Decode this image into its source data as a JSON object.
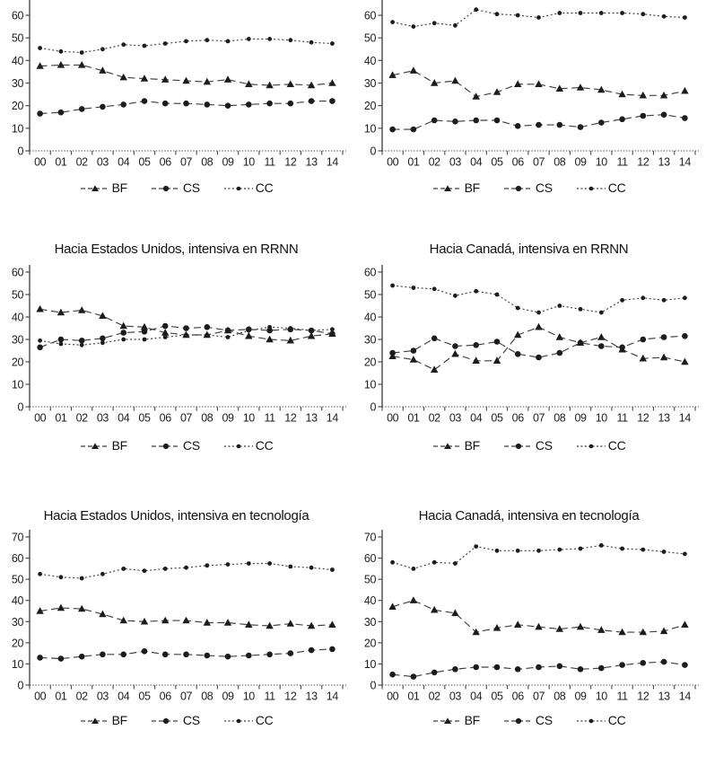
{
  "colors": {
    "line": "#3f3f3f",
    "marker": "#1c1c1c",
    "axis": "#4a4a4a",
    "text": "#1f1f1f",
    "background": "#ffffff"
  },
  "legend": {
    "items": [
      "BF",
      "CS",
      "CC"
    ]
  },
  "chart_data": [
    {
      "type": "line",
      "title": "",
      "position": "top-left",
      "categories": [
        "00",
        "01",
        "02",
        "03",
        "04",
        "05",
        "06",
        "07",
        "08",
        "09",
        "10",
        "11",
        "12",
        "13",
        "14"
      ],
      "ylim": [
        0,
        60
      ],
      "yticks": [
        0,
        10,
        20,
        30,
        40,
        50,
        60
      ],
      "grid": false,
      "legend_position": "bottom",
      "series": [
        {
          "name": "BF",
          "marker": "triangle",
          "linestyle": "dashed",
          "values": [
            37.5,
            38,
            38,
            35.5,
            32.5,
            32,
            31.5,
            31,
            30.5,
            31.5,
            29.5,
            29,
            29.5,
            29,
            30
          ]
        },
        {
          "name": "CS",
          "marker": "circle",
          "linestyle": "dashed",
          "values": [
            16.5,
            17,
            18.5,
            19.5,
            20.5,
            22,
            21,
            21,
            20.5,
            20,
            20.5,
            21,
            21,
            22,
            22
          ]
        },
        {
          "name": "CC",
          "marker": "dot",
          "linestyle": "dotted",
          "values": [
            45.5,
            44,
            43.5,
            45,
            47,
            46.5,
            47.5,
            48.5,
            49,
            48.5,
            49.5,
            49.5,
            49,
            48,
            47.5
          ]
        }
      ]
    },
    {
      "type": "line",
      "title": "",
      "position": "top-right",
      "categories": [
        "00",
        "01",
        "02",
        "03",
        "04",
        "05",
        "06",
        "07",
        "08",
        "09",
        "10",
        "11",
        "12",
        "13",
        "14"
      ],
      "ylim": [
        0,
        60
      ],
      "yticks": [
        0,
        10,
        20,
        30,
        40,
        50,
        60
      ],
      "grid": false,
      "legend_position": "bottom",
      "series": [
        {
          "name": "BF",
          "marker": "triangle",
          "linestyle": "dashed",
          "values": [
            33.5,
            35.5,
            30,
            31,
            24,
            26,
            29.5,
            29.5,
            27.5,
            28,
            27,
            25,
            24.5,
            24.5,
            26.5
          ]
        },
        {
          "name": "CS",
          "marker": "circle",
          "linestyle": "dashed",
          "values": [
            9.5,
            9.5,
            13.5,
            13,
            13.5,
            13.5,
            11,
            11.5,
            11.5,
            10.5,
            12.5,
            14,
            15.5,
            16,
            14.5
          ]
        },
        {
          "name": "CC",
          "marker": "dot",
          "linestyle": "dotted",
          "values": [
            57,
            55,
            56.5,
            55.5,
            62.5,
            60.5,
            60,
            59,
            61,
            61,
            61,
            61,
            60.5,
            59.5,
            59
          ]
        }
      ]
    },
    {
      "type": "line",
      "title": "Hacia Estados Unidos, intensiva en RRNN",
      "position": "middle-left",
      "categories": [
        "00",
        "01",
        "02",
        "03",
        "04",
        "05",
        "06",
        "07",
        "08",
        "09",
        "10",
        "11",
        "12",
        "13",
        "14"
      ],
      "ylim": [
        0,
        60
      ],
      "yticks": [
        0,
        10,
        20,
        30,
        40,
        50,
        60
      ],
      "grid": false,
      "legend_position": "bottom",
      "series": [
        {
          "name": "BF",
          "marker": "triangle",
          "linestyle": "dashed",
          "values": [
            43.5,
            42,
            43,
            40.5,
            36,
            35.5,
            33,
            32,
            32,
            34,
            31.5,
            30,
            29.5,
            31.5,
            32.5
          ]
        },
        {
          "name": "CS",
          "marker": "circle",
          "linestyle": "dashed",
          "values": [
            26.5,
            30,
            29.5,
            30.5,
            33,
            33.5,
            36,
            35,
            35.5,
            34,
            34.5,
            34,
            34.5,
            34,
            32.5
          ]
        },
        {
          "name": "CC",
          "marker": "dot",
          "linestyle": "dotted",
          "values": [
            29.5,
            28,
            27.5,
            28.5,
            30,
            30,
            31,
            32,
            32,
            31,
            34,
            35.5,
            35,
            34,
            34.5
          ]
        }
      ]
    },
    {
      "type": "line",
      "title": "Hacia Canadá, intensiva en RRNN",
      "position": "middle-right",
      "categories": [
        "00",
        "01",
        "02",
        "03",
        "04",
        "05",
        "06",
        "07",
        "08",
        "09",
        "10",
        "11",
        "12",
        "13",
        "14"
      ],
      "ylim": [
        0,
        60
      ],
      "yticks": [
        0,
        10,
        20,
        30,
        40,
        50,
        60
      ],
      "grid": false,
      "legend_position": "bottom",
      "series": [
        {
          "name": "BF",
          "marker": "triangle",
          "linestyle": "dashed",
          "values": [
            22.5,
            21,
            16.5,
            23.5,
            20.5,
            20.5,
            32,
            35.5,
            31,
            28.5,
            31,
            25.5,
            21.5,
            22,
            20
          ]
        },
        {
          "name": "CS",
          "marker": "circle",
          "linestyle": "dashed",
          "values": [
            24,
            25,
            30.5,
            27,
            27.5,
            29,
            23.5,
            22,
            24,
            28.5,
            27,
            26.5,
            30,
            31,
            31.5
          ]
        },
        {
          "name": "CC",
          "marker": "dot",
          "linestyle": "dotted",
          "values": [
            54,
            53,
            52.5,
            49.5,
            51.5,
            50,
            44,
            42,
            45,
            43.5,
            42,
            47.5,
            48.5,
            47.5,
            48.5
          ]
        }
      ]
    },
    {
      "type": "line",
      "title": "Hacia Estados Unidos, intensiva en tecnología",
      "position": "bottom-left",
      "categories": [
        "00",
        "01",
        "02",
        "03",
        "04",
        "05",
        "06",
        "07",
        "08",
        "09",
        "10",
        "11",
        "12",
        "13",
        "14"
      ],
      "ylim": [
        0,
        70
      ],
      "yticks": [
        0,
        10,
        20,
        30,
        40,
        50,
        60,
        70
      ],
      "grid": false,
      "legend_position": "bottom",
      "series": [
        {
          "name": "BF",
          "marker": "triangle",
          "linestyle": "dashed",
          "values": [
            35,
            36.5,
            36,
            33.5,
            30.5,
            30,
            30.5,
            30.5,
            29.5,
            29.5,
            28.5,
            28,
            29,
            28,
            28.5
          ]
        },
        {
          "name": "CS",
          "marker": "circle",
          "linestyle": "dashed",
          "values": [
            13,
            12.5,
            13.5,
            14.5,
            14.5,
            16,
            14.5,
            14.5,
            14,
            13.5,
            14,
            14.5,
            15,
            16.5,
            17
          ]
        },
        {
          "name": "CC",
          "marker": "dot",
          "linestyle": "dotted",
          "values": [
            52.5,
            51,
            50.5,
            52.5,
            55,
            54,
            55,
            55.5,
            56.5,
            57,
            57.5,
            57.5,
            56,
            55.5,
            54.5
          ]
        }
      ]
    },
    {
      "type": "line",
      "title": "Hacia Canadá, intensiva en tecnología",
      "position": "bottom-right",
      "categories": [
        "00",
        "01",
        "02",
        "03",
        "04",
        "05",
        "06",
        "07",
        "08",
        "09",
        "10",
        "11",
        "12",
        "13",
        "14"
      ],
      "ylim": [
        0,
        70
      ],
      "yticks": [
        0,
        10,
        20,
        30,
        40,
        50,
        60,
        70
      ],
      "grid": false,
      "legend_position": "bottom",
      "series": [
        {
          "name": "BF",
          "marker": "triangle",
          "linestyle": "dashed",
          "values": [
            37,
            40,
            35.5,
            34,
            25,
            27,
            28.5,
            27.5,
            26.5,
            27.5,
            26,
            25,
            25,
            25.5,
            28.5
          ]
        },
        {
          "name": "CS",
          "marker": "circle",
          "linestyle": "dashed",
          "values": [
            5,
            4,
            6,
            7.5,
            8.5,
            8.5,
            7.5,
            8.5,
            9,
            7.5,
            8,
            9.5,
            10.5,
            11,
            9.5
          ]
        },
        {
          "name": "CC",
          "marker": "dot",
          "linestyle": "dotted",
          "values": [
            58,
            55,
            58,
            57.5,
            65.5,
            63.5,
            63.5,
            63.5,
            64,
            64.5,
            66,
            64.5,
            64,
            63,
            62
          ]
        }
      ]
    }
  ]
}
